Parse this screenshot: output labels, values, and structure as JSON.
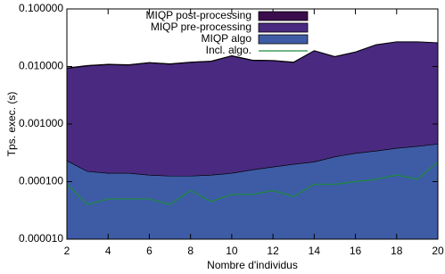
{
  "chart_data": {
    "type": "stacked-area",
    "xlabel": "Nombre d'individus",
    "ylabel": "Tps. exec. (s)",
    "log_y": true,
    "legend": "top-center",
    "x": [
      2,
      3,
      4,
      5,
      6,
      7,
      8,
      9,
      10,
      11,
      12,
      13,
      14,
      15,
      16,
      17,
      18,
      19,
      20
    ],
    "xlim": [
      2,
      20
    ],
    "xticks": [
      2,
      4,
      6,
      8,
      10,
      12,
      14,
      16,
      18,
      20
    ],
    "ylim": [
      1e-05,
      0.1
    ],
    "yticks": [
      {
        "value": 1e-05,
        "label": "0.000010"
      },
      {
        "value": 0.0001,
        "label": "0.000100"
      },
      {
        "value": 0.001,
        "label": "0.001000"
      },
      {
        "value": 0.01,
        "label": "0.010000"
      },
      {
        "value": 0.1,
        "label": "0.100000"
      }
    ],
    "series": [
      {
        "name": "MIQP post-processing",
        "color": "#3c0d4d",
        "kind": "area",
        "values": [
          0.0003,
          0.0003,
          0.0003,
          0.0003,
          0.0003,
          0.0003,
          0.0003,
          0.0003,
          0.0003,
          0.0003,
          0.0003,
          0.0003,
          0.0003,
          0.0003,
          0.0003,
          0.0003,
          0.0003,
          0.0003,
          0.0003
        ]
      },
      {
        "name": "MIQP pre-processing",
        "color": "#4a2a80",
        "kind": "area",
        "values": [
          0.00897,
          0.01005,
          0.01056,
          0.01036,
          0.01137,
          0.01078,
          0.01158,
          0.01207,
          0.01506,
          0.01254,
          0.01232,
          0.0115,
          0.01848,
          0.01443,
          0.01739,
          0.02336,
          0.02632,
          0.02629,
          0.02525
        ]
      },
      {
        "name": "MIQP algo",
        "color": "#3e5ca5",
        "kind": "area",
        "values": [
          0.00023,
          0.00015,
          0.00014,
          0.00014,
          0.00013,
          0.000125,
          0.000125,
          0.00013,
          0.00014,
          0.00016,
          0.00018,
          0.0002,
          0.00022,
          0.00027,
          0.00031,
          0.00034,
          0.00038,
          0.00041,
          0.00045
        ]
      },
      {
        "name": "Incl. algo.",
        "color": "#1e8a3c",
        "kind": "line",
        "values": [
          9e-05,
          4e-05,
          5e-05,
          5e-05,
          5e-05,
          4e-05,
          7e-05,
          4.5e-05,
          6e-05,
          6e-05,
          7e-05,
          5.5e-05,
          9e-05,
          9e-05,
          0.0001,
          0.00011,
          0.00013,
          0.00011,
          0.00022
        ]
      }
    ]
  }
}
